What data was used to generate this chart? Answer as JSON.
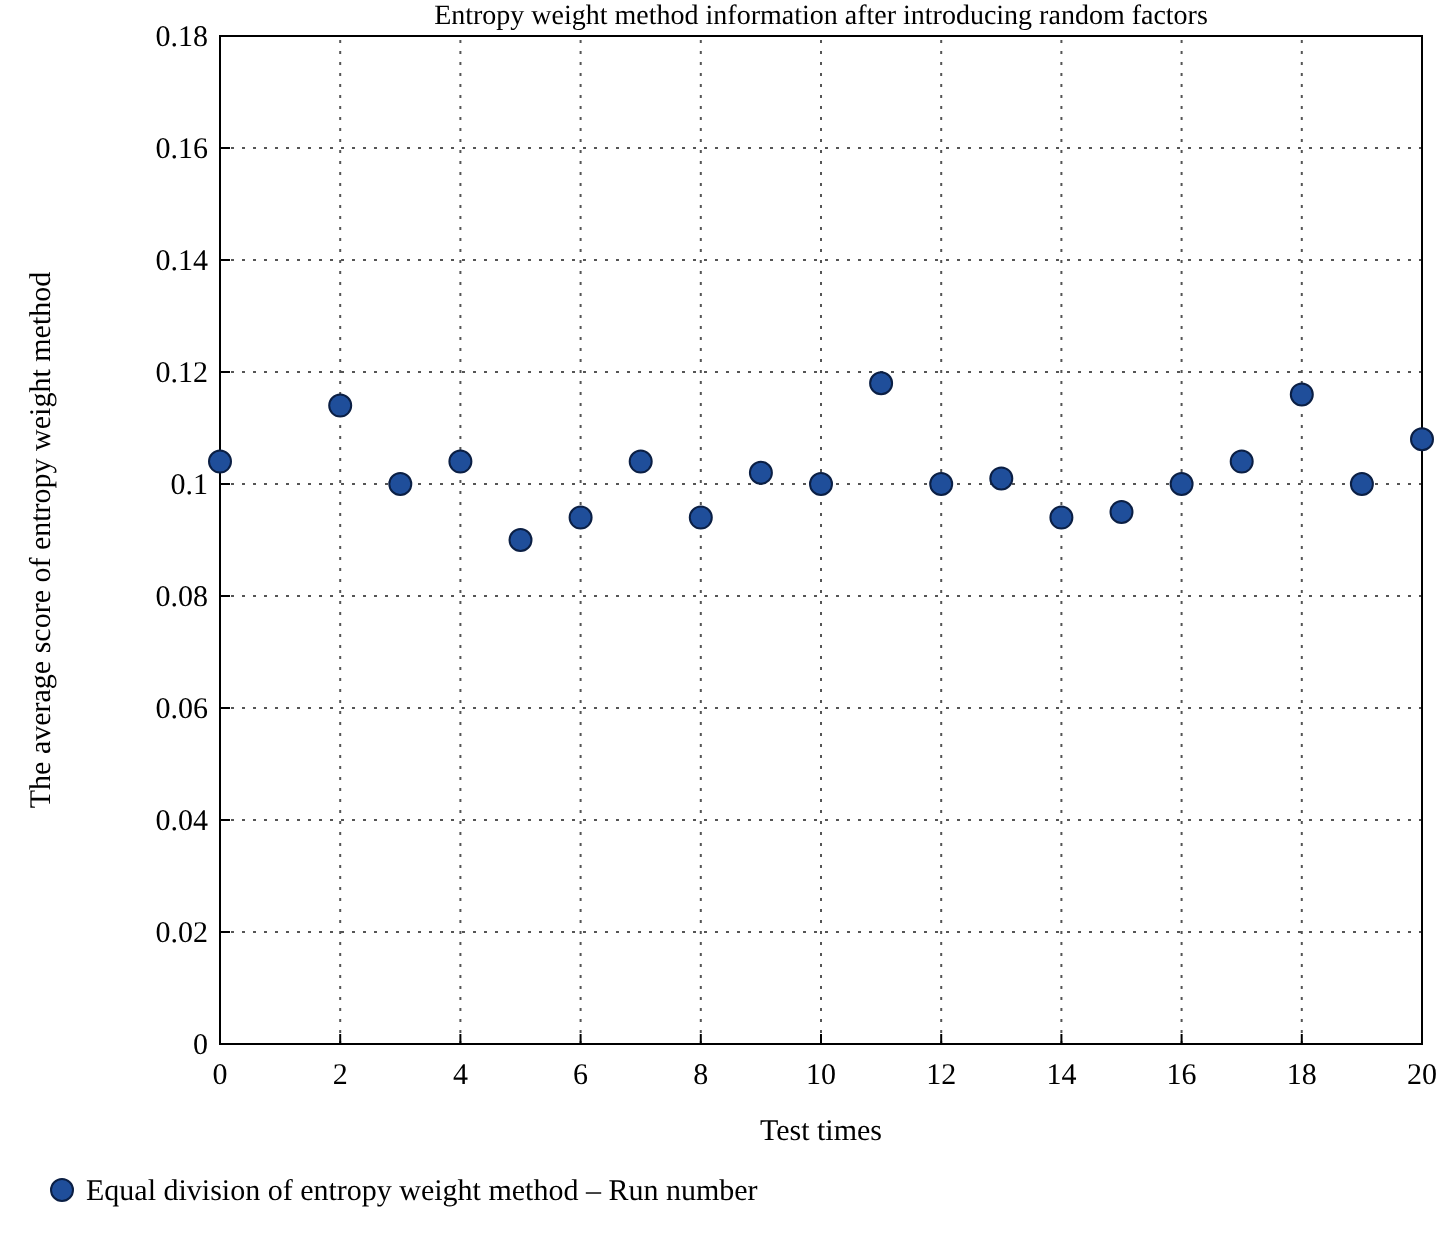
{
  "chart_data": {
    "type": "scatter",
    "title": "Entropy weight method information after introducing random factors",
    "xlabel": "Test times",
    "ylabel": "The average score of entropy weight method",
    "x": [
      0,
      2,
      3,
      4,
      5,
      6,
      7,
      8,
      9,
      10,
      11,
      12,
      13,
      14,
      15,
      16,
      17,
      18,
      19,
      20
    ],
    "series": [
      {
        "name": "Equal division of entropy weight method – Run number",
        "color": "#1f4e9a",
        "values": [
          0.104,
          0.114,
          0.1,
          0.104,
          0.09,
          0.094,
          0.104,
          0.094,
          0.102,
          0.1,
          0.118,
          0.1,
          0.101,
          0.094,
          0.095,
          0.1,
          0.104,
          0.116,
          0.1,
          0.108
        ]
      }
    ],
    "xlim": [
      0,
      20
    ],
    "xticks": [
      0,
      2,
      4,
      6,
      8,
      10,
      12,
      14,
      16,
      18,
      20
    ],
    "ylim": [
      0,
      0.18
    ],
    "yticks": [
      0,
      0.02,
      0.04,
      0.06,
      0.08,
      0.1,
      0.12,
      0.14,
      0.16,
      0.18
    ],
    "grid": true,
    "legend": "bottom left",
    "marker": "circle"
  }
}
